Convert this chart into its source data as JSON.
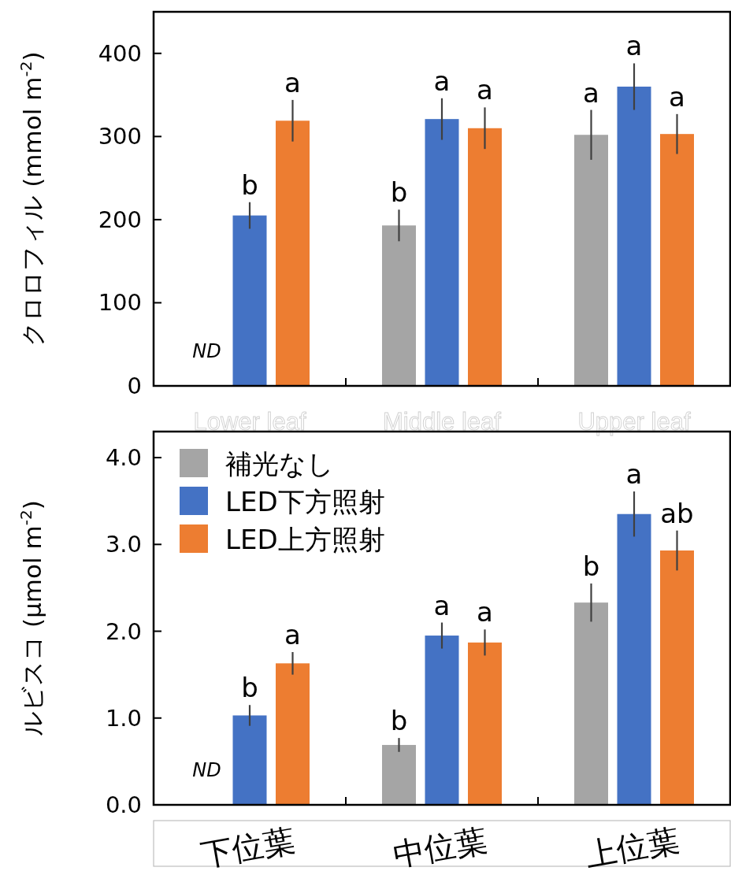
{
  "chart_data": [
    {
      "type": "bar",
      "ylabel": "クロロフィル (mmol m$^{-2}$)",
      "categories": [
        "Lower leaf",
        "Middle leaf",
        "Upper leaf"
      ],
      "ylim": [
        0,
        450
      ],
      "yticks": [
        0,
        100,
        200,
        300,
        400
      ],
      "legend": false,
      "grid": false,
      "series": [
        {
          "color": "#a5a5a5",
          "values": [
            null,
            193,
            302
          ],
          "errors": [
            null,
            19,
            30
          ],
          "value_labels": [
            "ND",
            "b",
            "a"
          ]
        },
        {
          "color": "#4472c4",
          "values": [
            205,
            321,
            360
          ],
          "errors": [
            16,
            25,
            28
          ],
          "value_labels": [
            "b",
            "a",
            "a"
          ]
        },
        {
          "color": "#ed7d31",
          "values": [
            319,
            310,
            303
          ],
          "errors": [
            25,
            25,
            24
          ],
          "value_labels": [
            "a",
            "a",
            "a"
          ]
        }
      ]
    },
    {
      "type": "bar",
      "ylabel": "ルビスコ (µmol m$^{-2}$)",
      "categories": [
        "下位葉",
        "中位葉",
        "上位葉"
      ],
      "ylim": [
        0,
        4.3
      ],
      "yticks": [
        {
          "value": 0,
          "label": "0.0"
        },
        {
          "value": 1,
          "label": "1.0"
        },
        {
          "value": 2,
          "label": "2.0"
        },
        {
          "value": 3,
          "label": "3.0"
        },
        {
          "value": 4,
          "label": "4.0"
        }
      ],
      "legend": "top left",
      "grid": false,
      "series": [
        {
          "name": "補光なし",
          "color": "#a5a5a5",
          "values": [
            null,
            0.69,
            2.33
          ],
          "errors": [
            null,
            0.08,
            0.22
          ],
          "value_labels": [
            "ND",
            "b",
            "b"
          ]
        },
        {
          "name": "LED下方照射",
          "color": "#4472c4",
          "values": [
            1.03,
            1.95,
            3.35
          ],
          "errors": [
            0.12,
            0.15,
            0.26
          ],
          "value_labels": [
            "b",
            "a",
            "a"
          ]
        },
        {
          "name": "LED上方照射",
          "color": "#ed7d31",
          "values": [
            1.63,
            1.87,
            2.93
          ],
          "errors": [
            0.13,
            0.15,
            0.23
          ],
          "value_labels": [
            "a",
            "a",
            "ab"
          ]
        }
      ]
    }
  ]
}
